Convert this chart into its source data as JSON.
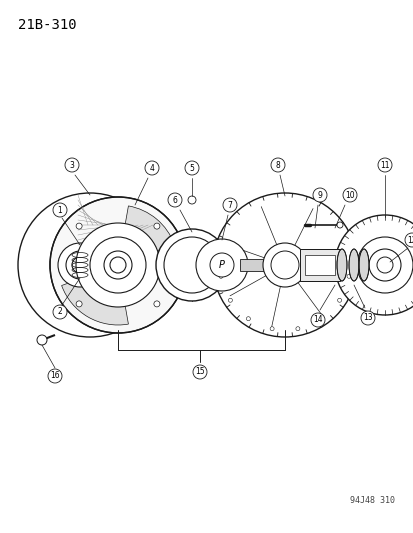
{
  "title": "21B-310",
  "watermark": "94J48 310",
  "bg_color": "#ffffff",
  "line_color": "#1a1a1a",
  "title_fontsize": 10,
  "label_fontsize": 6,
  "watermark_fontsize": 6,
  "figsize": [
    4.14,
    5.33
  ],
  "dpi": 100
}
